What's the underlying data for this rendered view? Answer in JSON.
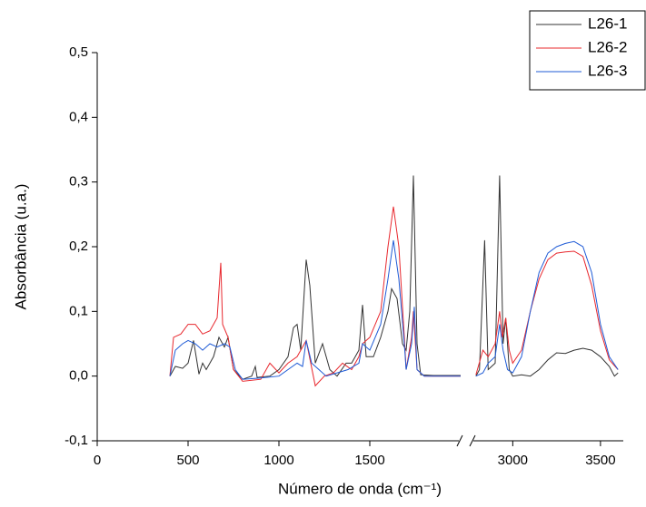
{
  "chart_data": {
    "type": "line",
    "x_label": "Número de onda (cm⁻¹)",
    "y_label": "Absorbância (u.a.)",
    "xlim": [
      [
        0,
        2000
      ],
      [
        2760,
        3630
      ]
    ],
    "xticks": [
      0,
      500,
      1000,
      1500,
      3000,
      3500
    ],
    "ylim": [
      -0.1,
      0.5
    ],
    "yticks": [
      {
        "value": -0.1,
        "label": "-0,1"
      },
      {
        "value": 0,
        "label": "0,0"
      },
      {
        "value": 0.1,
        "label": "0,1"
      },
      {
        "value": 0.2,
        "label": "0,2"
      },
      {
        "value": 0.3,
        "label": "0,3"
      },
      {
        "value": 0.4,
        "label": "0,4"
      },
      {
        "value": 0.5,
        "label": "0,5"
      }
    ],
    "legend": "top-right",
    "series": [
      {
        "name": "L26-1",
        "color": "#333333",
        "x": [
          400,
          430,
          470,
          500,
          530,
          560,
          580,
          600,
          640,
          670,
          700,
          720,
          750,
          800,
          850,
          870,
          880,
          950,
          1000,
          1050,
          1080,
          1100,
          1120,
          1150,
          1170,
          1200,
          1240,
          1280,
          1320,
          1370,
          1400,
          1440,
          1460,
          1480,
          1520,
          1560,
          1600,
          1620,
          1650,
          1680,
          1700,
          1720,
          1740,
          1760,
          1780,
          1850,
          2000,
          2790,
          2810,
          2840,
          2860,
          2900,
          2925,
          2945,
          2960,
          2980,
          3000,
          3050,
          3100,
          3150,
          3200,
          3250,
          3300,
          3350,
          3400,
          3450,
          3500,
          3550,
          3580,
          3600
        ],
        "values": [
          0.0,
          0.015,
          0.012,
          0.02,
          0.055,
          0.003,
          0.02,
          0.01,
          0.03,
          0.06,
          0.045,
          0.06,
          0.01,
          -0.005,
          0.0,
          0.015,
          -0.002,
          0.0,
          0.01,
          0.03,
          0.075,
          0.08,
          0.04,
          0.18,
          0.14,
          0.02,
          0.05,
          0.01,
          0.0,
          0.02,
          0.02,
          0.04,
          0.11,
          0.03,
          0.03,
          0.06,
          0.1,
          0.135,
          0.12,
          0.05,
          0.04,
          0.1,
          0.31,
          0.05,
          0.002,
          0.001,
          0.001,
          0.0,
          0.01,
          0.21,
          0.01,
          0.02,
          0.31,
          0.05,
          0.09,
          0.01,
          0.0,
          0.002,
          0.0,
          0.01,
          0.025,
          0.036,
          0.035,
          0.04,
          0.043,
          0.04,
          0.03,
          0.015,
          0.0,
          0.005
        ]
      },
      {
        "name": "L26-2",
        "color": "#e8282e",
        "x": [
          400,
          420,
          460,
          500,
          540,
          580,
          620,
          660,
          680,
          690,
          720,
          750,
          800,
          900,
          950,
          1000,
          1050,
          1100,
          1150,
          1200,
          1250,
          1300,
          1350,
          1400,
          1440,
          1460,
          1500,
          1560,
          1600,
          1630,
          1660,
          1690,
          1700,
          1730,
          1740,
          1760,
          1800,
          2000,
          2790,
          2830,
          2860,
          2900,
          2925,
          2940,
          2960,
          2980,
          3000,
          3050,
          3100,
          3150,
          3200,
          3250,
          3300,
          3350,
          3400,
          3450,
          3500,
          3550,
          3600
        ],
        "values": [
          0.0,
          0.06,
          0.065,
          0.08,
          0.08,
          0.065,
          0.07,
          0.09,
          0.175,
          0.08,
          0.06,
          0.01,
          -0.008,
          -0.005,
          0.02,
          0.005,
          0.02,
          0.03,
          0.055,
          -0.015,
          0.0,
          0.005,
          0.02,
          0.01,
          0.03,
          0.05,
          0.06,
          0.1,
          0.2,
          0.262,
          0.2,
          0.06,
          0.01,
          0.06,
          0.1,
          0.01,
          0.0,
          0.0,
          0.002,
          0.04,
          0.03,
          0.05,
          0.1,
          0.06,
          0.09,
          0.04,
          0.02,
          0.04,
          0.1,
          0.15,
          0.18,
          0.19,
          0.192,
          0.193,
          0.185,
          0.14,
          0.07,
          0.025,
          0.01
        ]
      },
      {
        "name": "L26-3",
        "color": "#1f5bd6",
        "x": [
          400,
          430,
          470,
          500,
          540,
          580,
          620,
          660,
          700,
          730,
          760,
          800,
          900,
          1000,
          1050,
          1100,
          1130,
          1150,
          1180,
          1220,
          1260,
          1320,
          1380,
          1440,
          1460,
          1500,
          1560,
          1600,
          1630,
          1660,
          1690,
          1700,
          1730,
          1745,
          1760,
          1800,
          2000,
          2790,
          2830,
          2860,
          2900,
          2925,
          2945,
          2970,
          3000,
          3050,
          3100,
          3150,
          3200,
          3250,
          3300,
          3350,
          3400,
          3450,
          3500,
          3550,
          3600
        ],
        "values": [
          0.0,
          0.04,
          0.05,
          0.055,
          0.05,
          0.04,
          0.05,
          0.045,
          0.05,
          0.045,
          0.01,
          -0.005,
          -0.003,
          0.0,
          0.01,
          0.02,
          0.015,
          0.055,
          0.02,
          0.01,
          0.0,
          0.005,
          0.01,
          0.02,
          0.05,
          0.04,
          0.08,
          0.15,
          0.21,
          0.15,
          0.05,
          0.01,
          0.05,
          0.107,
          0.01,
          0.0,
          0.0,
          0.0,
          0.005,
          0.02,
          0.03,
          0.08,
          0.04,
          0.01,
          0.005,
          0.03,
          0.1,
          0.16,
          0.19,
          0.2,
          0.205,
          0.208,
          0.2,
          0.16,
          0.08,
          0.03,
          0.01
        ]
      }
    ]
  }
}
